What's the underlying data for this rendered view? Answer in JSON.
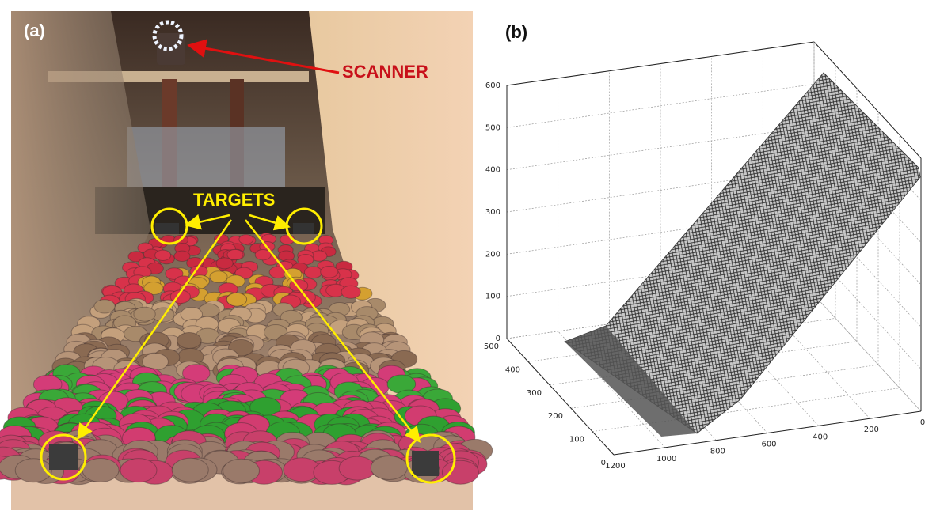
{
  "panel_a": {
    "label": "(a)",
    "scanner_label": "SCANNER",
    "targets_label": "TARGETS"
  },
  "panel_b": {
    "label": "(b)",
    "z_ticks": [
      0,
      100,
      200,
      300,
      400,
      500,
      600
    ],
    "y_ticks": [
      0,
      100,
      200,
      300,
      400,
      500
    ],
    "x_ticks": [
      1200,
      1000,
      800,
      600,
      400,
      200,
      0
    ]
  }
}
